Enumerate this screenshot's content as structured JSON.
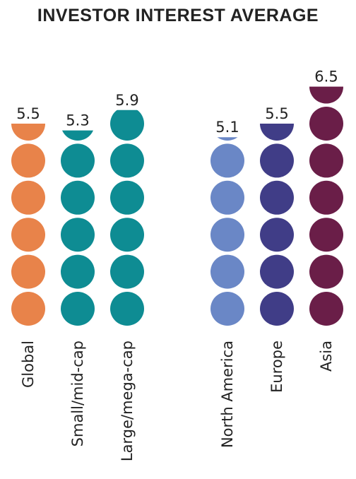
{
  "chart_data": {
    "type": "pictograph",
    "title": "INVESTOR INTEREST AVERAGE",
    "categories": [
      "Global",
      "Small/mid-cap",
      "Large/mega-cap",
      "North America",
      "Europe",
      "Asia"
    ],
    "values": [
      5.5,
      5.3,
      5.9,
      5.1,
      5.5,
      6.5
    ],
    "value_labels": [
      "5.5",
      "5.3",
      "5.9",
      "5.1",
      "5.5",
      "6.5"
    ],
    "colors": [
      "#E8834A",
      "#0E8C93",
      "#0E8C93",
      "#6A87C6",
      "#403D87",
      "#6A1E48"
    ]
  }
}
